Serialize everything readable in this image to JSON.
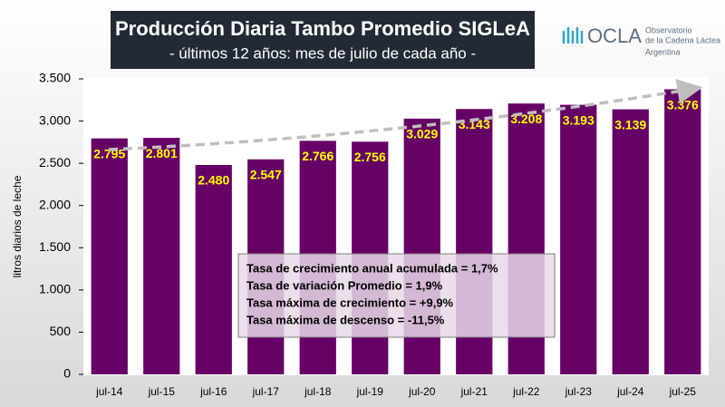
{
  "chart_data": {
    "type": "bar",
    "title": "Producción Diaria Tambo Promedio SIGLeA",
    "subtitle": "- últimos 12 años: mes de julio de cada año -",
    "y_label": "litros diarios de leche",
    "categories": [
      "jul-14",
      "jul-15",
      "jul-16",
      "jul-17",
      "jul-18",
      "jul-19",
      "jul-20",
      "jul-21",
      "jul-22",
      "jul-23",
      "jul-24",
      "jul-25"
    ],
    "values": [
      2795,
      2801,
      2480,
      2547,
      2766,
      2756,
      3029,
      3143,
      3208,
      3193,
      3139,
      3376
    ],
    "value_labels": [
      "2.795",
      "2.801",
      "2.480",
      "2.547",
      "2.766",
      "2.756",
      "3.029",
      "3.143",
      "3.208",
      "3.193",
      "3.139",
      "3.376"
    ],
    "color": "#660066",
    "label_color": "#ffff00",
    "ylim": [
      0,
      3500
    ],
    "yticks": [
      0,
      500,
      {
        "value": 1000,
        "label": "1.000"
      },
      {
        "value": 1500,
        "label": "1.500"
      },
      {
        "value": 2000,
        "label": "2.000"
      },
      {
        "value": 2500,
        "label": "2.500"
      },
      {
        "value": 3000,
        "label": "3.000"
      },
      {
        "value": 3500,
        "label": "3.500"
      }
    ],
    "grid": false,
    "annotations": [
      "Tasa de crecimiento anual acumulada = 1,7%",
      "Tasa de variación Promedio = 1,9%",
      "Tasa máxima de crecimiento = +9,9%",
      "Tasa máxima de descenso = -11,5%"
    ]
  },
  "logo": {
    "name": "OCLA",
    "line1": "Observatorio",
    "line2": "de la Cadena Láctea",
    "line3": "Argentina"
  }
}
